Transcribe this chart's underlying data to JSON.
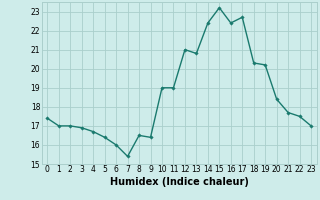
{
  "x": [
    0,
    1,
    2,
    3,
    4,
    5,
    6,
    7,
    8,
    9,
    10,
    11,
    12,
    13,
    14,
    15,
    16,
    17,
    18,
    19,
    20,
    21,
    22,
    23
  ],
  "y": [
    17.4,
    17.0,
    17.0,
    16.9,
    16.7,
    16.4,
    16.0,
    15.4,
    16.5,
    16.4,
    19.0,
    19.0,
    21.0,
    20.8,
    22.4,
    23.2,
    22.4,
    22.7,
    20.3,
    20.2,
    18.4,
    17.7,
    17.5,
    17.0
  ],
  "line_color": "#1a7a6e",
  "marker": "D",
  "marker_size": 1.8,
  "line_width": 1.0,
  "xlabel": "Humidex (Indice chaleur)",
  "xlim": [
    -0.5,
    23.5
  ],
  "ylim": [
    15,
    23.5
  ],
  "yticks": [
    15,
    16,
    17,
    18,
    19,
    20,
    21,
    22,
    23
  ],
  "xticks": [
    0,
    1,
    2,
    3,
    4,
    5,
    6,
    7,
    8,
    9,
    10,
    11,
    12,
    13,
    14,
    15,
    16,
    17,
    18,
    19,
    20,
    21,
    22,
    23
  ],
  "bg_color": "#ceecea",
  "grid_color": "#aacfcc",
  "xlabel_fontsize": 7,
  "tick_fontsize": 5.5,
  "xlabel_fontweight": "bold"
}
